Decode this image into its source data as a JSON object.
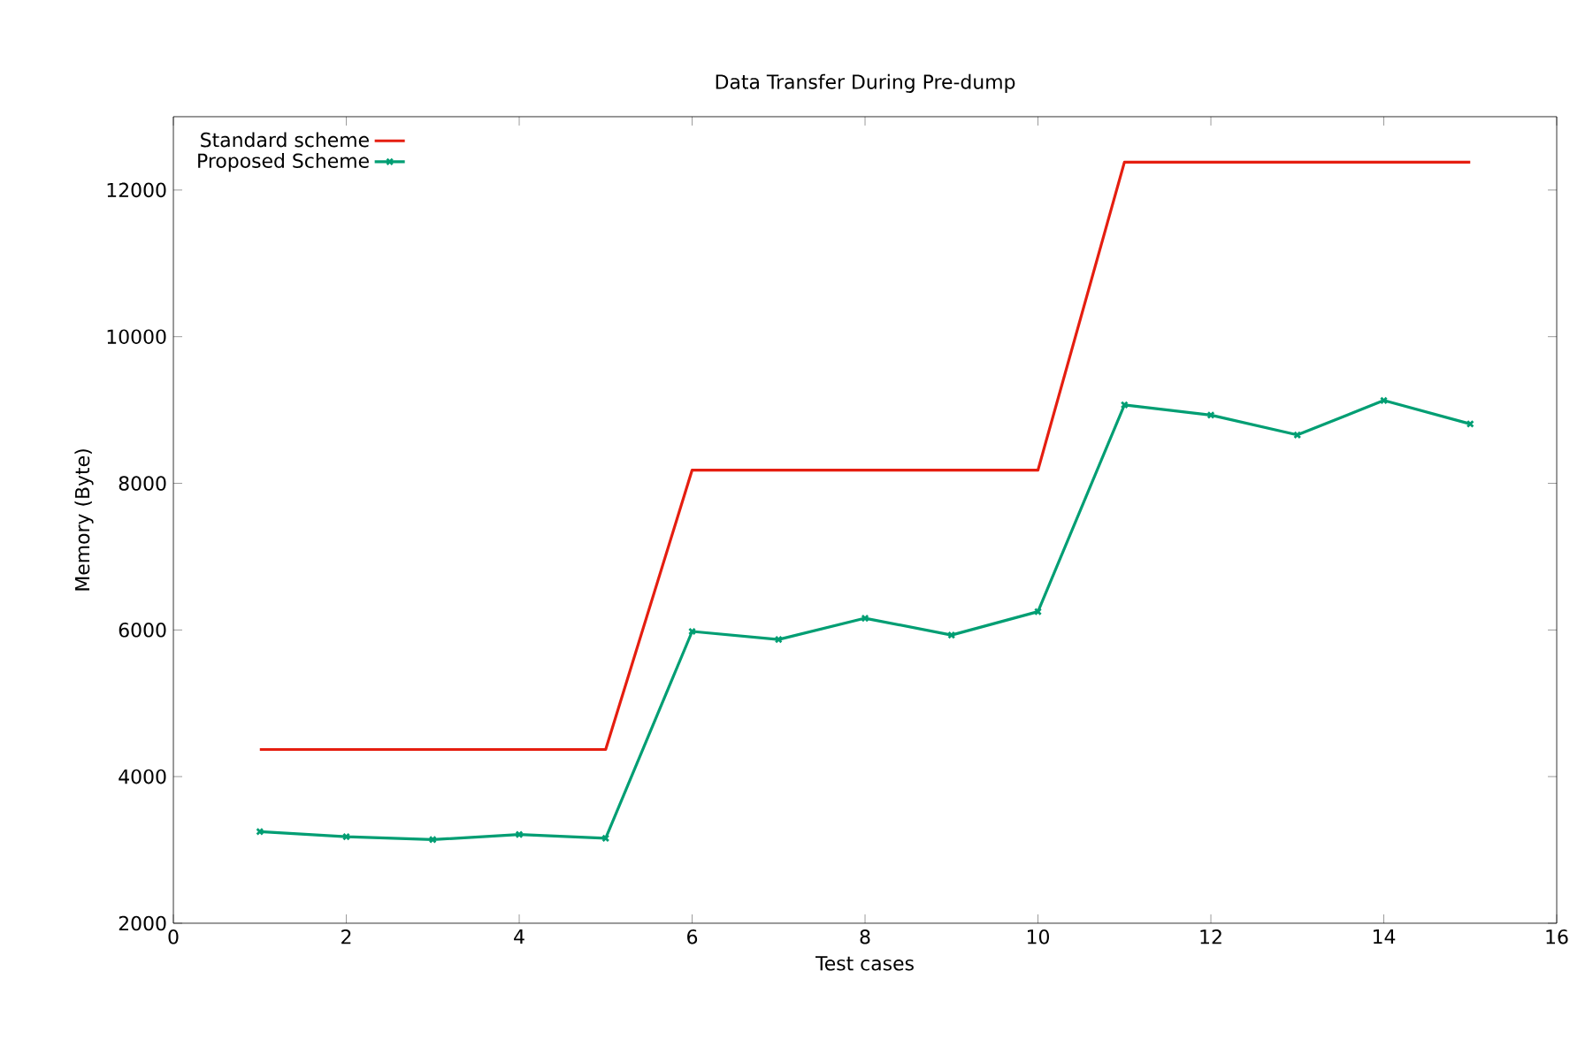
{
  "chart_data": {
    "type": "line",
    "title": "Data Transfer During Pre-dump",
    "xlabel": "Test cases",
    "ylabel": "Memory (Byte)",
    "x": [
      1,
      2,
      3,
      4,
      5,
      6,
      7,
      8,
      9,
      10,
      11,
      12,
      13,
      14,
      15
    ],
    "series": [
      {
        "name": "Standard scheme",
        "color": "#e51e10",
        "marker": "none",
        "values": [
          4370,
          4370,
          4370,
          4370,
          4370,
          8180,
          8180,
          8180,
          8180,
          8180,
          12380,
          12380,
          12380,
          12380,
          12380
        ]
      },
      {
        "name": "Proposed Scheme",
        "color": "#009e73",
        "marker": "cross",
        "values": [
          3250,
          3180,
          3140,
          3210,
          3160,
          5980,
          5870,
          6160,
          5930,
          6250,
          9070,
          8930,
          8660,
          9130,
          8810
        ]
      }
    ],
    "xlim": [
      0,
      16
    ],
    "ylim": [
      2000,
      13000
    ],
    "xticks": [
      0,
      2,
      4,
      6,
      8,
      10,
      12,
      14,
      16
    ],
    "yticks": [
      2000,
      4000,
      6000,
      8000,
      10000,
      12000
    ],
    "grid": false,
    "legend": "top left"
  }
}
